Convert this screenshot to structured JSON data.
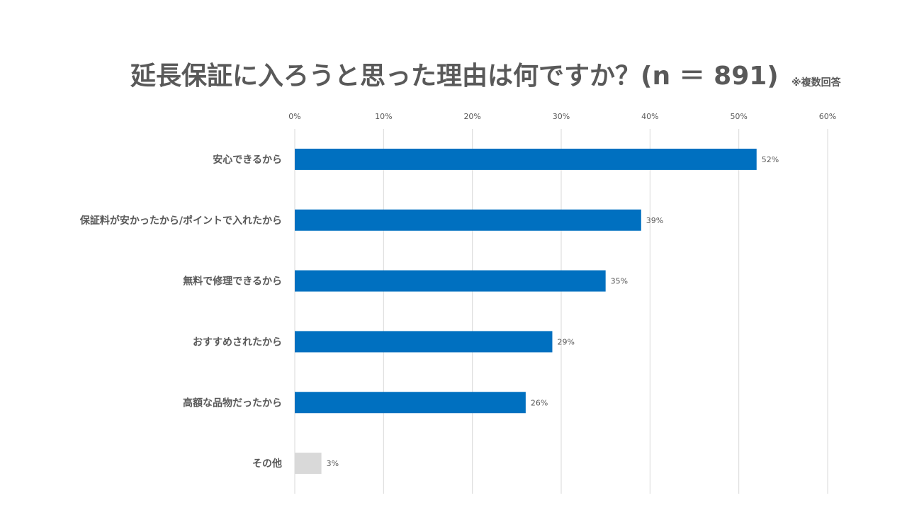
{
  "header": {
    "title": "延長保証に入ろうと思った理由は何ですか？(n ＝ 891)",
    "note": "※複数回答"
  },
  "colors": {
    "primary_bar": "#0070C0",
    "other_bar": "#D9D9D9",
    "gridline": "#D9D9D9",
    "text": "#595959"
  },
  "chart_data": {
    "type": "bar",
    "orientation": "horizontal",
    "title": "延長保証に入ろうと思った理由は何ですか？(n ＝ 891)",
    "categories": [
      "安心できるから",
      "保証料が安かったから/ポイントで入れたから",
      "無料で修理できるから",
      "おすすめされたから",
      "高額な品物だったから",
      "その他"
    ],
    "values": [
      52,
      39,
      35,
      29,
      26,
      3
    ],
    "value_labels": [
      "52%",
      "39%",
      "35%",
      "29%",
      "26%",
      "3%"
    ],
    "xlim": [
      0,
      60
    ],
    "xticks": [
      0,
      10,
      20,
      30,
      40,
      50,
      60
    ],
    "xtick_labels": [
      "0%",
      "10%",
      "20%",
      "30%",
      "40%",
      "50%",
      "60%"
    ],
    "tick_position": "top",
    "grid": true,
    "legend": "none"
  }
}
